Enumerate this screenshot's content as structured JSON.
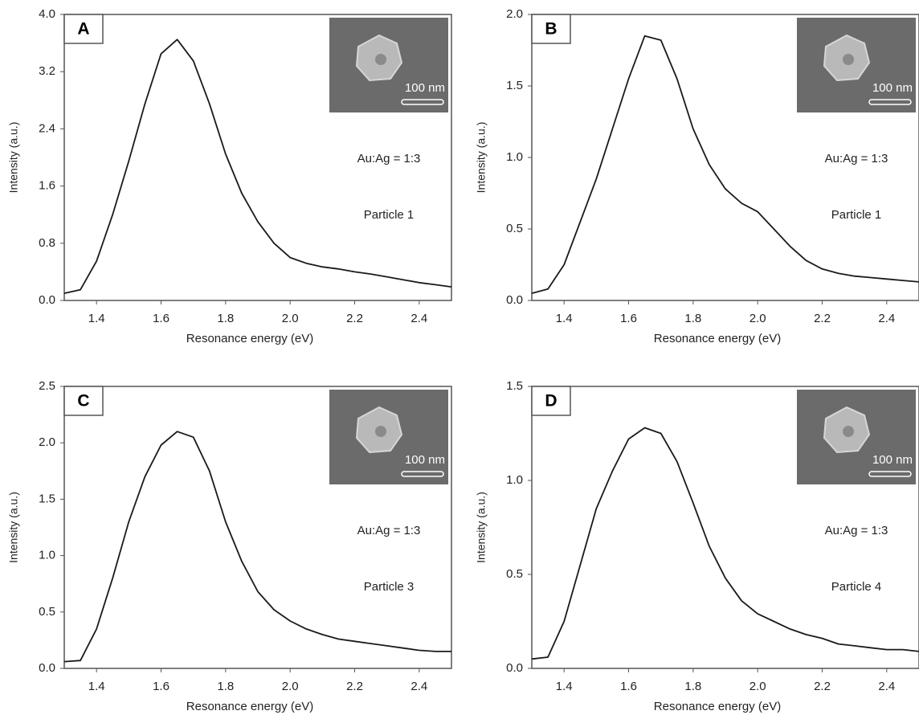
{
  "chart_data": [
    {
      "type": "line",
      "panel_label": "A",
      "xlabel": "Resonance energy (eV)",
      "ylabel": "Intensity (a.u.)",
      "inset_scale": "100 nm",
      "annotations": [
        "Au:Ag = 1:3",
        "Particle 1"
      ],
      "color": "#1a1a1a",
      "x": [
        1.3,
        1.35,
        1.4,
        1.45,
        1.5,
        1.55,
        1.6,
        1.65,
        1.7,
        1.75,
        1.8,
        1.85,
        1.9,
        1.95,
        2.0,
        2.05,
        2.1,
        2.15,
        2.2,
        2.25,
        2.3,
        2.35,
        2.4,
        2.45,
        2.5
      ],
      "values": [
        0.1,
        0.15,
        0.55,
        1.2,
        1.95,
        2.75,
        3.45,
        3.65,
        3.35,
        2.75,
        2.05,
        1.5,
        1.1,
        0.8,
        0.6,
        0.52,
        0.47,
        0.44,
        0.4,
        0.37,
        0.33,
        0.29,
        0.25,
        0.22,
        0.19
      ],
      "xlim": [
        1.3,
        2.5
      ],
      "ylim": [
        0,
        4
      ],
      "xticks": [
        1.4,
        1.6,
        1.8,
        {
          "value": 2,
          "label": "2.0"
        },
        2.2,
        2.4
      ],
      "yticks": [
        {
          "value": 0,
          "label": "0.0"
        },
        0.8,
        1.6,
        2.4,
        3.2,
        {
          "value": 4,
          "label": "4.0"
        }
      ]
    },
    {
      "type": "line",
      "panel_label": "B",
      "xlabel": "Resonance energy (eV)",
      "ylabel": "Intensity (a.u.)",
      "inset_scale": "100 nm",
      "annotations": [
        "Au:Ag = 1:3",
        "Particle 1"
      ],
      "color": "#1a1a1a",
      "x": [
        1.3,
        1.35,
        1.4,
        1.45,
        1.5,
        1.55,
        1.6,
        1.65,
        1.7,
        1.75,
        1.8,
        1.85,
        1.9,
        1.95,
        2.0,
        2.05,
        2.1,
        2.15,
        2.2,
        2.25,
        2.3,
        2.35,
        2.4,
        2.45,
        2.5
      ],
      "values": [
        0.05,
        0.08,
        0.25,
        0.55,
        0.85,
        1.2,
        1.55,
        1.85,
        1.82,
        1.55,
        1.2,
        0.95,
        0.78,
        0.68,
        0.62,
        0.5,
        0.38,
        0.28,
        0.22,
        0.19,
        0.17,
        0.16,
        0.15,
        0.14,
        0.13
      ],
      "xlim": [
        1.3,
        2.5
      ],
      "ylim": [
        0,
        2
      ],
      "xticks": [
        1.4,
        1.6,
        1.8,
        {
          "value": 2,
          "label": "2.0"
        },
        2.2,
        2.4
      ],
      "yticks": [
        {
          "value": 0,
          "label": "0.0"
        },
        0.5,
        {
          "value": 1,
          "label": "1.0"
        },
        1.5,
        {
          "value": 2,
          "label": "2.0"
        }
      ]
    },
    {
      "type": "line",
      "panel_label": "C",
      "xlabel": "Resonance energy (eV)",
      "ylabel": "Intensity (a.u.)",
      "inset_scale": "100 nm",
      "annotations": [
        "Au:Ag = 1:3",
        "Particle 3"
      ],
      "color": "#1a1a1a",
      "x": [
        1.3,
        1.35,
        1.4,
        1.45,
        1.5,
        1.55,
        1.6,
        1.65,
        1.7,
        1.75,
        1.8,
        1.85,
        1.9,
        1.95,
        2.0,
        2.05,
        2.1,
        2.15,
        2.2,
        2.25,
        2.3,
        2.35,
        2.4,
        2.45,
        2.5
      ],
      "values": [
        0.06,
        0.07,
        0.35,
        0.8,
        1.3,
        1.7,
        1.98,
        2.1,
        2.05,
        1.75,
        1.3,
        0.95,
        0.68,
        0.52,
        0.42,
        0.35,
        0.3,
        0.26,
        0.24,
        0.22,
        0.2,
        0.18,
        0.16,
        0.15,
        0.15
      ],
      "xlim": [
        1.3,
        2.5
      ],
      "ylim": [
        0,
        2.5
      ],
      "xticks": [
        1.4,
        1.6,
        1.8,
        {
          "value": 2,
          "label": "2.0"
        },
        2.2,
        2.4
      ],
      "yticks": [
        {
          "value": 0,
          "label": "0.0"
        },
        0.5,
        {
          "value": 1,
          "label": "1.0"
        },
        1.5,
        {
          "value": 2,
          "label": "2.0"
        },
        2.5
      ]
    },
    {
      "type": "line",
      "panel_label": "D",
      "xlabel": "Resonance energy (eV)",
      "ylabel": "Intensity (a.u.)",
      "inset_scale": "100 nm",
      "annotations": [
        "Au:Ag = 1:3",
        "Particle 4"
      ],
      "color": "#1a1a1a",
      "x": [
        1.3,
        1.35,
        1.4,
        1.45,
        1.5,
        1.55,
        1.6,
        1.65,
        1.7,
        1.75,
        1.8,
        1.85,
        1.9,
        1.95,
        2.0,
        2.05,
        2.1,
        2.15,
        2.2,
        2.25,
        2.3,
        2.35,
        2.4,
        2.45,
        2.5
      ],
      "values": [
        0.05,
        0.06,
        0.25,
        0.55,
        0.85,
        1.05,
        1.22,
        1.28,
        1.25,
        1.1,
        0.88,
        0.65,
        0.48,
        0.36,
        0.29,
        0.25,
        0.21,
        0.18,
        0.16,
        0.13,
        0.12,
        0.11,
        0.1,
        0.1,
        0.09
      ],
      "xlim": [
        1.3,
        2.5
      ],
      "ylim": [
        0,
        1.5
      ],
      "xticks": [
        1.4,
        1.6,
        1.8,
        {
          "value": 2,
          "label": "2.0"
        },
        2.2,
        2.4
      ],
      "yticks": [
        {
          "value": 0,
          "label": "0.0"
        },
        0.5,
        {
          "value": 1,
          "label": "1.0"
        },
        1.5
      ]
    }
  ]
}
